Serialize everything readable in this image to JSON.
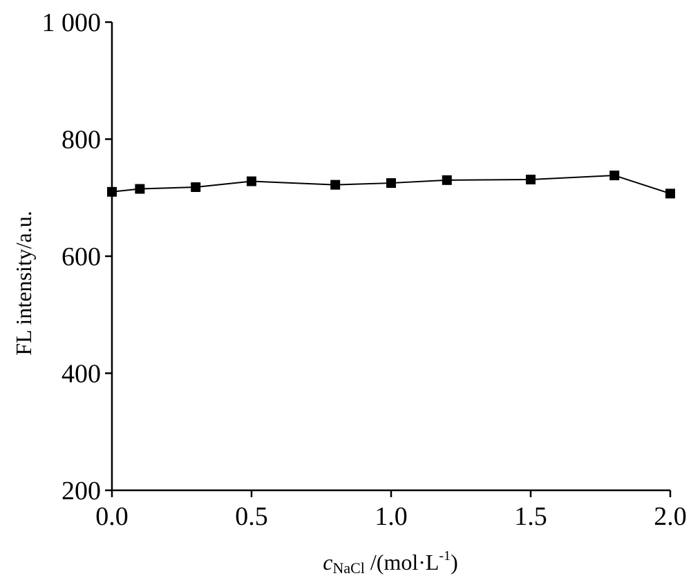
{
  "chart_data": {
    "type": "line",
    "x": [
      0.0,
      0.1,
      0.3,
      0.5,
      0.8,
      1.0,
      1.2,
      1.5,
      1.8,
      2.0
    ],
    "series": [
      {
        "values": [
          710,
          715,
          718,
          728,
          722,
          725,
          730,
          731,
          738,
          707
        ],
        "marker": "filled-square",
        "color": "#000000"
      }
    ],
    "xlabel": {
      "var": "c",
      "sub": "NaCl",
      "unit_pre": " /(mol·L",
      "unit_sup": "-1",
      "unit_post": ")"
    },
    "ylabel": "FL intensity/a.u.",
    "xlim": [
      0.0,
      2.0
    ],
    "ylim": [
      200,
      1000
    ],
    "xticks": [
      0.0,
      0.5,
      1.0,
      1.5,
      2.0
    ],
    "xtick_labels": [
      "0.0",
      "0.5",
      "1.0",
      "1.5",
      "2.0"
    ],
    "yticks": [
      200,
      400,
      600,
      800,
      1000
    ],
    "ytick_labels": [
      "200",
      "400",
      "600",
      "800",
      "1 000"
    ],
    "grid": false,
    "legend": "none"
  }
}
